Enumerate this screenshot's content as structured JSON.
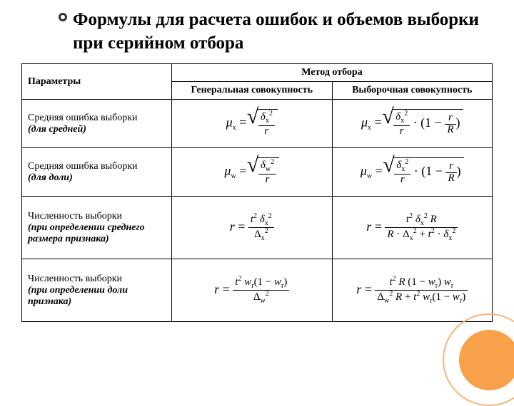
{
  "title": "Формулы для расчета ошибок и объемов выборки при серийном отбора",
  "headers": {
    "params": "Параметры",
    "method": "Метод отбора",
    "gen": "Генеральная совокупность",
    "vyb": "Выборочная совокупность"
  },
  "rows": [
    {
      "label": "Средняя ошибка выборки",
      "em": "(для средней)",
      "f1_html": "<i>μ</i><span class='sub'>x</span> = <span class='sqrt'><span class='rad'><span class='frac'><span class='num'><i>δ</i><span class='sub'>x</span><span class='sup'>2</span></span><span class='den'><i>r</i></span></span></span></span>",
      "f2_html": "<i>μ</i><span class='sub'>x</span> = <span class='sqrt'><span class='rad'><span class='frac'><span class='num'><i>δ</i><span class='sub'>x</span><span class='sup'>2</span></span><span class='den'><i>r</i></span></span> · (1 − <span class='frac'><span class='num'><i>r</i></span><span class='den'><i>R</i></span></span>)</span></span>"
    },
    {
      "label": "Средняя ошибка выборки",
      "em": "(для доли)",
      "f1_html": "<i>μ</i><span class='sub'>w</span> = <span class='sqrt'><span class='rad'><span class='frac'><span class='num'><i>δ</i><span class='sub'>w</span><span class='sup'>2</span></span><span class='den'><i>r</i></span></span></span></span>",
      "f2_html": "<i>μ</i><span class='sub'>w</span> = <span class='sqrt'><span class='rad'><span class='frac'><span class='num'><i>δ</i><span class='sub'>x</span><span class='sup'>2</span></span><span class='den'><i>r</i></span></span> · (1 − <span class='frac'><span class='num'><i>r</i></span><span class='den'><i>R</i></span></span>)</span></span>"
    },
    {
      "label": "Численность выборки",
      "em": "(при определении среднего размера признака)",
      "f1_html": "<i>r</i> = <span class='frac'><span class='num'><i>t</i><span class='sup'>2</span> <i>δ</i><span class='sub'>x</span><span class='sup'>2</span></span><span class='den'>Δ<span class='sub'>x</span><span class='sup'>2</span></span></span>",
      "f2_html": "<i>r</i> = <span class='frac'><span class='num'><i>t</i><span class='sup'>2</span> <i>δ</i><span class='sub'>x</span><span class='sup'>2</span> <i>R</i></span><span class='den'><i>R</i> · Δ<span class='sub'>x</span><span class='sup'>2</span> + <i>t</i><span class='sup'>2</span> · <i>δ</i><span class='sub'>x</span><span class='sup'>2</span></span></span>"
    },
    {
      "label": "Численность выборки",
      "em": "(при определении доли признака)",
      "f1_html": "<i>r</i> = <span class='frac'><span class='num'><i>t</i><span class='sup'>2</span> <i>w</i><span class='sub'>r</span>(1 − <i>w</i><span class='sub'>r</span>)</span><span class='den'>Δ<span class='sub'>w</span><span class='sup'>2</span></span></span>",
      "f2_html": "<i>r</i> = <span class='frac'><span class='num'><i>t</i><span class='sup'>2</span> <i>R</i> (1 − <i>w</i><span class='sub'>r</span>) <i>w</i><span class='sub'>r</span></span><span class='den'>Δ<span class='sub'>w</span><span class='sup'>2</span> <i>R</i> + <i>t</i><span class='sup'>2</span> <i>w</i><span class='sub'>r</span>(1 − <i>w</i><span class='sub'>r</span>)</span></span>"
    }
  ],
  "colors": {
    "accent": "#f7a14a",
    "accent_light": "#f7b377"
  }
}
